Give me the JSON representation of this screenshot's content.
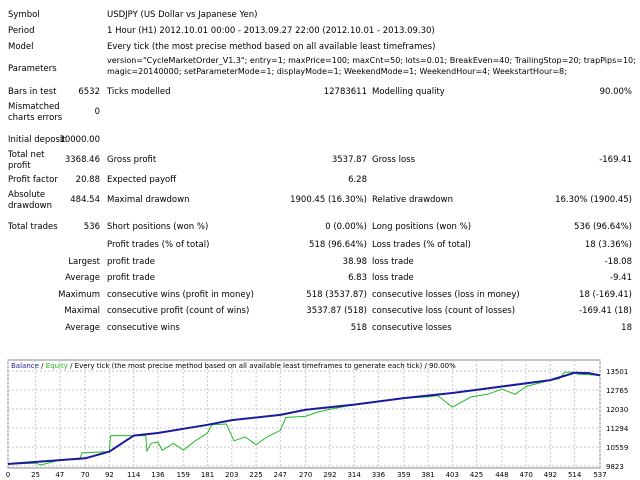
{
  "header": [
    {
      "label": "Symbol",
      "value": "USDJPY (US Dollar vs Japanese Yen)"
    },
    {
      "label": "Period",
      "value": "1 Hour (H1) 2012.10.01 00:00 - 2013.09.27 22:00 (2012.10.01 - 2013.09.30)"
    },
    {
      "label": "Model",
      "value": "Every tick (the most precise method based on all available least timeframes)"
    },
    {
      "label": "Parameters",
      "value": "version=\"CycleMarketOrder_V1.3\"; entry=1; maxPrice=100; maxCnt=50; lots=0.01; BreakEven=40; TrailingStop=20; trapPips=10;",
      "value2": "magic=20140000; setParameterMode=1; displayMode=1; WeekendMode=1; WeekendHour=4; WeekstartHour=8;"
    }
  ],
  "stats": {
    "bars_label": "Bars in test",
    "bars": "6532",
    "ticks_label": "Ticks modelled",
    "ticks": "12783611",
    "quality_label": "Modelling quality",
    "quality": "90.00%",
    "mismatch_label1": "Mismatched",
    "mismatch_label2": "charts errors",
    "mismatch": "0",
    "deposit_label": "Initial deposit",
    "deposit": "10000.00",
    "net_label1": "Total net",
    "net_label2": "profit",
    "net": "3368.46",
    "gross_profit_label": "Gross profit",
    "gross_profit": "3537.87",
    "gross_loss_label": "Gross loss",
    "gross_loss": "-169.41",
    "pf_label": "Profit factor",
    "pf": "20.88",
    "payoff_label": "Expected payoff",
    "payoff": "6.28",
    "abs_dd_label1": "Absolute",
    "abs_dd_label2": "drawdown",
    "abs_dd": "484.54",
    "max_dd_label": "Maximal drawdown",
    "max_dd": "1900.45 (16.30%)",
    "rel_dd_label": "Relative drawdown",
    "rel_dd": "16.30% (1900.45)",
    "trades_label": "Total trades",
    "trades": "536",
    "short_label": "Short positions (won %)",
    "short": "0 (0.00%)",
    "long_label": "Long positions (won %)",
    "long": "536 (96.64%)"
  },
  "rows": [
    {
      "pre": "",
      "l1": "Profit trades (% of total)",
      "v1": "518 (96.64%)",
      "l2": "Loss trades (% of total)",
      "v2": "18 (3.36%)"
    },
    {
      "pre": "Largest",
      "l1": "profit trade",
      "v1": "38.98",
      "l2": "loss trade",
      "v2": "-18.08"
    },
    {
      "pre": "Average",
      "l1": "profit trade",
      "v1": "6.83",
      "l2": "loss trade",
      "v2": "-9.41"
    },
    {
      "pre": "Maximum",
      "l1": "consecutive wins (profit in money)",
      "v1": "518 (3537.87)",
      "l2": "consecutive losses (loss in money)",
      "v2": "18 (-169.41)"
    },
    {
      "pre": "Maximal",
      "l1": "consecutive profit (count of wins)",
      "v1": "3537.87 (518)",
      "l2": "consecutive loss (count of losses)",
      "v2": "-169.41 (18)"
    },
    {
      "pre": "Average",
      "l1": "consecutive wins",
      "v1": "518",
      "l2": "consecutive losses",
      "v2": "18"
    }
  ],
  "chart_data": {
    "type": "line",
    "legend": {
      "balance": "Balance",
      "sep1": " / ",
      "equity": "Equity",
      "rest": " / Every tick (the most precise method based on all available least timeframes to generate each tick) / 90.00%"
    },
    "colors": {
      "balance": "#1a1aa0",
      "equity": "#22bb22",
      "grid": "#c8c8c8"
    },
    "grid": true,
    "xlim": [
      0,
      537
    ],
    "ylim": [
      9823,
      13501
    ],
    "x_ticks": [
      "0",
      "25",
      "47",
      "70",
      "92",
      "114",
      "136",
      "159",
      "181",
      "203",
      "225",
      "247",
      "270",
      "292",
      "314",
      "336",
      "359",
      "381",
      "403",
      "425",
      "448",
      "470",
      "492",
      "514",
      "537"
    ],
    "y_ticks": [
      "13501",
      "12765",
      "12030",
      "11294",
      "10559",
      "9823"
    ],
    "series": [
      {
        "name": "Balance",
        "points": [
          [
            0,
            9900
          ],
          [
            47,
            10050
          ],
          [
            70,
            10120
          ],
          [
            92,
            10380
          ],
          [
            114,
            11000
          ],
          [
            136,
            11100
          ],
          [
            181,
            11420
          ],
          [
            203,
            11600
          ],
          [
            247,
            11800
          ],
          [
            270,
            12000
          ],
          [
            314,
            12200
          ],
          [
            359,
            12450
          ],
          [
            403,
            12650
          ],
          [
            448,
            12900
          ],
          [
            492,
            13150
          ],
          [
            514,
            13430
          ],
          [
            527,
            13420
          ],
          [
            537,
            13330
          ]
        ]
      },
      {
        "name": "Equity",
        "points": [
          [
            0,
            9900
          ],
          [
            25,
            9930
          ],
          [
            30,
            9870
          ],
          [
            47,
            10050
          ],
          [
            65,
            10080
          ],
          [
            67,
            10330
          ],
          [
            92,
            10380
          ],
          [
            93,
            11000
          ],
          [
            114,
            11000
          ],
          [
            125,
            11000
          ],
          [
            126,
            10400
          ],
          [
            130,
            10700
          ],
          [
            136,
            10750
          ],
          [
            140,
            10430
          ],
          [
            150,
            10700
          ],
          [
            159,
            10440
          ],
          [
            170,
            10800
          ],
          [
            181,
            11100
          ],
          [
            185,
            11420
          ],
          [
            198,
            11450
          ],
          [
            205,
            10800
          ],
          [
            215,
            10950
          ],
          [
            225,
            10650
          ],
          [
            235,
            10950
          ],
          [
            247,
            11200
          ],
          [
            252,
            11700
          ],
          [
            270,
            11750
          ],
          [
            280,
            11900
          ],
          [
            290,
            12000
          ],
          [
            314,
            12200
          ],
          [
            340,
            12350
          ],
          [
            359,
            12450
          ],
          [
            381,
            12500
          ],
          [
            390,
            12550
          ],
          [
            403,
            12100
          ],
          [
            420,
            12500
          ],
          [
            435,
            12600
          ],
          [
            448,
            12800
          ],
          [
            460,
            12600
          ],
          [
            470,
            12900
          ],
          [
            492,
            13150
          ],
          [
            500,
            13200
          ],
          [
            505,
            13450
          ],
          [
            514,
            13450
          ],
          [
            517,
            13380
          ],
          [
            537,
            13330
          ]
        ]
      }
    ]
  }
}
